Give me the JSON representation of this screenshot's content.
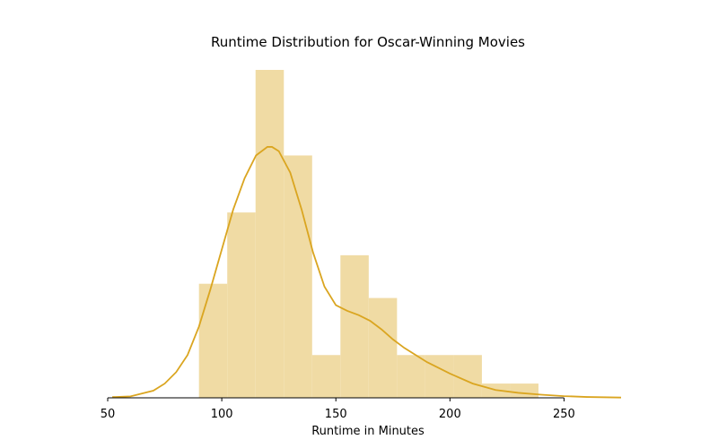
{
  "chart_data": {
    "type": "histogram",
    "title": "Runtime Distribution for Oscar-Winning Movies",
    "xlabel": "Runtime in Minutes",
    "ylabel": "",
    "xlim": [
      50,
      275
    ],
    "ylim": [
      0,
      23
    ],
    "xticks": [
      50,
      100,
      150,
      200,
      250
    ],
    "bins": [
      {
        "start": 90,
        "end": 102.4,
        "count": 8
      },
      {
        "start": 102.4,
        "end": 114.8,
        "count": 13
      },
      {
        "start": 114.8,
        "end": 127.2,
        "count": 23
      },
      {
        "start": 127.2,
        "end": 139.6,
        "count": 17
      },
      {
        "start": 139.6,
        "end": 152.0,
        "count": 3
      },
      {
        "start": 152.0,
        "end": 164.4,
        "count": 10
      },
      {
        "start": 164.4,
        "end": 176.8,
        "count": 7
      },
      {
        "start": 176.8,
        "end": 189.2,
        "count": 3
      },
      {
        "start": 189.2,
        "end": 201.6,
        "count": 3
      },
      {
        "start": 201.6,
        "end": 214.0,
        "count": 3
      },
      {
        "start": 214.0,
        "end": 226.4,
        "count": 1
      },
      {
        "start": 226.4,
        "end": 238.8,
        "count": 1
      }
    ],
    "kde": {
      "x": [
        52,
        60,
        70,
        75,
        80,
        85,
        90,
        95,
        100,
        105,
        110,
        115,
        120,
        122,
        125,
        130,
        135,
        140,
        145,
        150,
        155,
        160,
        165,
        170,
        175,
        180,
        185,
        190,
        195,
        200,
        210,
        220,
        230,
        240,
        250,
        260,
        275
      ],
      "y": [
        0.05,
        0.1,
        0.5,
        1.0,
        1.8,
        3.0,
        5.0,
        7.6,
        10.4,
        13.2,
        15.4,
        17.0,
        17.6,
        17.6,
        17.3,
        15.8,
        13.2,
        10.2,
        7.8,
        6.5,
        6.1,
        5.8,
        5.4,
        4.8,
        4.1,
        3.5,
        3.0,
        2.5,
        2.1,
        1.7,
        1.0,
        0.55,
        0.35,
        0.22,
        0.12,
        0.06,
        0.02
      ]
    },
    "grid": false,
    "colors": {
      "bar_fill": "#f0dba4",
      "kde_line": "#daa520",
      "axis": "#000000"
    }
  }
}
